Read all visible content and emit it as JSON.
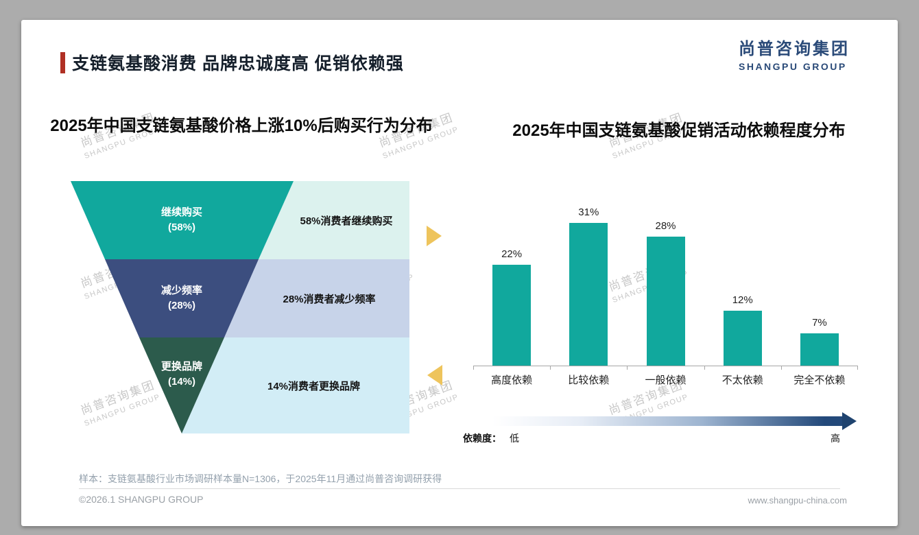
{
  "slide": {
    "title": "支链氨基酸消费 品牌忠诚度高 促销依赖强",
    "logo_cn": "尚普咨询集团",
    "logo_en": "SHANGPU GROUP",
    "watermark_cn": "尚普咨询集团",
    "watermark_en": "SHANGPU GROUP",
    "footnote": "样本：支链氨基酸行业市场调研样本量N=1306，于2025年11月通过尚普咨询调研获得",
    "footer_left": "©2026.1 SHANGPU GROUP",
    "footer_right": "www.shangpu-china.com",
    "accent_color": "#B03024"
  },
  "chart_data": [
    {
      "type": "funnel",
      "title": "2025年中国支链氨基酸价格上涨10%后购买行为分布",
      "segments": [
        {
          "label": "继续购买",
          "value": 58,
          "pct_label": "(58%)",
          "note": "58%消费者继续购买",
          "color": "#11A89D",
          "note_bg": "#DCF2EE"
        },
        {
          "label": "减少频率",
          "value": 28,
          "pct_label": "(28%)",
          "note": "28%消费者减少频率",
          "color": "#3C4E7F",
          "note_bg": "#C7D3E9"
        },
        {
          "label": "更换品牌",
          "value": 14,
          "pct_label": "(14%)",
          "note": "14%消费者更换品牌",
          "color": "#2C5B4C",
          "note_bg": "#D2EDF6"
        }
      ]
    },
    {
      "type": "bar",
      "title": "2025年中国支链氨基酸促销活动依赖程度分布",
      "categories": [
        "高度依赖",
        "比较依赖",
        "一般依赖",
        "不太依赖",
        "完全不依赖"
      ],
      "values": [
        22,
        31,
        28,
        12,
        7
      ],
      "value_labels": [
        "22%",
        "31%",
        "28%",
        "12%",
        "7%"
      ],
      "bar_color": "#11A89D",
      "ylim": [
        0,
        35
      ],
      "grid": false,
      "axis": {
        "legend_title": "依赖度：",
        "low": "低",
        "high": "高"
      }
    }
  ]
}
